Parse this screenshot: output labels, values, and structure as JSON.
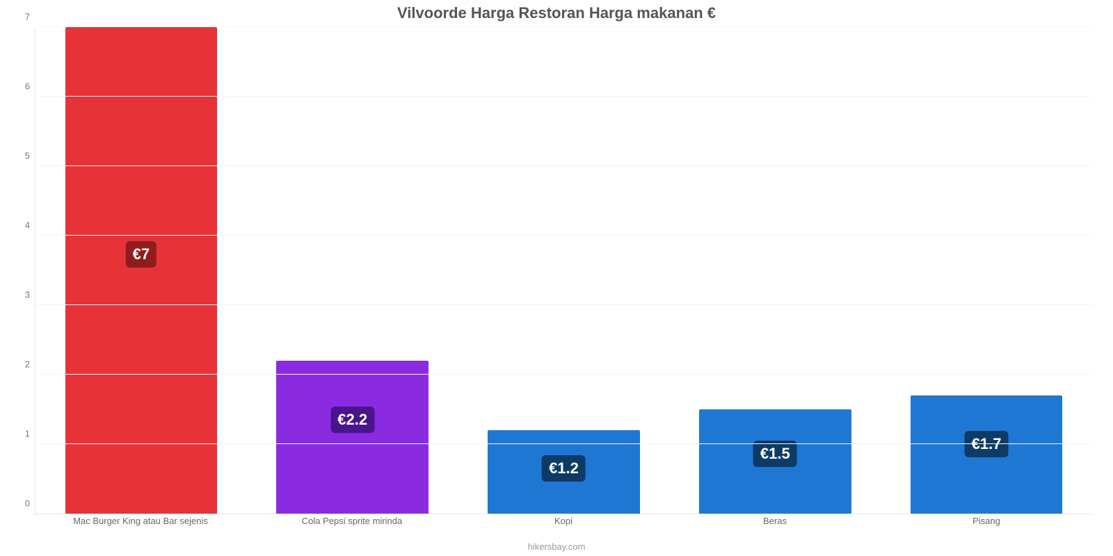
{
  "chart": {
    "type": "bar",
    "title": "Vilvoorde Harga Restoran Harga makanan €",
    "title_fontsize": 22,
    "title_color": "#555555",
    "attribution": "hikersbay.com",
    "attribution_color": "#999999",
    "background_color": "#ffffff",
    "grid_color": "#f5f5f5",
    "axis_color": "#e5e5e5",
    "tick_color": "#777777",
    "xlabel_color": "#666666",
    "xlabel_fontsize": 13,
    "ytick_fontsize": 13,
    "value_fontsize": 22,
    "bar_width": 0.72,
    "ylim": [
      0,
      7
    ],
    "ytick_step": 1,
    "yticks": [
      "0",
      "1",
      "2",
      "3",
      "4",
      "5",
      "6",
      "7"
    ],
    "categories": [
      "Mac Burger King atau Bar sejenis",
      "Cola Pepsi sprite mirinda",
      "Kopi",
      "Beras",
      "Pisang"
    ],
    "values": [
      7,
      2.2,
      1.2,
      1.5,
      1.7
    ],
    "value_labels": [
      "€7",
      "€2.2",
      "€1.2",
      "€1.5",
      "€1.7"
    ],
    "bar_colors": [
      "#e73238",
      "#8a2be2",
      "#1f77d4",
      "#1f77d4",
      "#1f77d4"
    ],
    "badge_colors": [
      "#8f1d1d",
      "#4a148c",
      "#0d3b66",
      "#0d3b66",
      "#0d3b66"
    ],
    "badge_text_color": "#ffffff"
  }
}
